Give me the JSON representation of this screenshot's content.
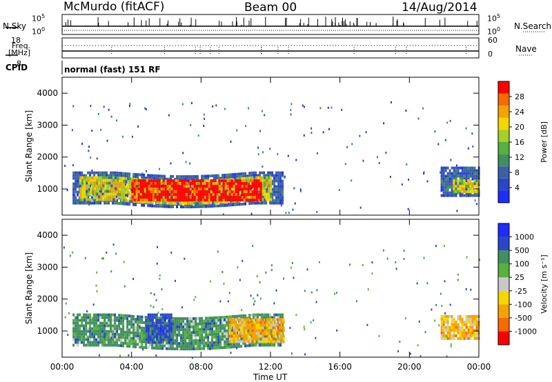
{
  "header": {
    "station": "McMurdo (fitACF)",
    "beam": "Beam 00",
    "date": "14/Aug/2014"
  },
  "strip_labels": {
    "nsky": "N.Sky",
    "nsky_top": "10^5",
    "nsky_bottom": "10^0",
    "nsearch": "N.Search",
    "nsearch_top": "10^5",
    "nsearch_bottom": "10^0",
    "freq": "Freq.",
    "freq_unit": "[MHz]",
    "freq_top": "18",
    "freq_bottom": "8",
    "nave": "Nave",
    "nave_top": "60",
    "nave_bottom": "0",
    "cpid": "CPID",
    "cpid_text": "normal (fast) 151 RF"
  },
  "colors": {
    "power_scale": [
      "#1f2cff",
      "#2b47c9",
      "#3d5fa8",
      "#3f8f5f",
      "#56b13d",
      "#a6cf2a",
      "#f5d600",
      "#f5a300",
      "#f56b00",
      "#ff0000"
    ],
    "velocity_scale": [
      "#ff0000",
      "#f56b00",
      "#f5a300",
      "#f5d600",
      "#c8c8c8",
      "#56b13d",
      "#3f8f5f",
      "#2b47c9",
      "#1f2cff"
    ]
  },
  "chart_data": [
    {
      "type": "heatmap",
      "name": "power",
      "ylabel": "Slant Range [km]",
      "xlabel": "Time UT",
      "xlim": [
        0,
        24
      ],
      "ylim": [
        180,
        4500
      ],
      "yticks": [
        1000,
        2000,
        3000,
        4000
      ],
      "xticks": [
        "00:00",
        "04:00",
        "08:00",
        "12:00",
        "16:00",
        "20:00",
        "00:00"
      ],
      "colorbar": {
        "label": "Power [dB]",
        "ticks": [
          "4",
          "8",
          "12",
          "16",
          "20",
          "24",
          "28"
        ],
        "range": [
          0,
          30
        ]
      },
      "bands": [
        {
          "t0": 0.6,
          "t1": 12.7,
          "r0": 550,
          "r1": 1550,
          "level": "outer"
        },
        {
          "t0": 1.0,
          "t1": 12.0,
          "r0": 700,
          "r1": 1400,
          "level": "mid"
        },
        {
          "t0": 4.0,
          "t1": 11.5,
          "r0": 650,
          "r1": 1300,
          "level": "core"
        },
        {
          "t0": 21.8,
          "t1": 24.0,
          "r0": 800,
          "r1": 1700,
          "level": "outer"
        },
        {
          "t0": 22.5,
          "t1": 24.0,
          "r0": 950,
          "r1": 1300,
          "level": "mid"
        }
      ]
    },
    {
      "type": "heatmap",
      "name": "velocity",
      "ylabel": "Slant Range [km]",
      "xlabel": "Time UT",
      "xlim": [
        0,
        24
      ],
      "ylim": [
        180,
        4500
      ],
      "yticks": [
        1000,
        2000,
        3000,
        4000
      ],
      "xticks": [
        "00:00",
        "04:00",
        "08:00",
        "12:00",
        "16:00",
        "20:00",
        "00:00"
      ],
      "colorbar": {
        "label": "Velocity [m s^-1]",
        "ticks": [
          "-1000",
          "-500",
          "-100",
          "-25",
          "25",
          "100",
          "500",
          "1000"
        ],
        "range": [
          -1250,
          1250
        ]
      },
      "bands": [
        {
          "t0": 0.6,
          "t1": 12.7,
          "r0": 550,
          "r1": 1550,
          "level": "green"
        },
        {
          "t0": 4.8,
          "t1": 6.3,
          "r0": 600,
          "r1": 1550,
          "level": "blue"
        },
        {
          "t0": 9.6,
          "t1": 12.7,
          "r0": 700,
          "r1": 1400,
          "level": "orange"
        },
        {
          "t0": 21.8,
          "t1": 24.0,
          "r0": 800,
          "r1": 1500,
          "level": "orange"
        }
      ]
    }
  ],
  "axes_labels": {
    "time_ut": "Time UT"
  }
}
